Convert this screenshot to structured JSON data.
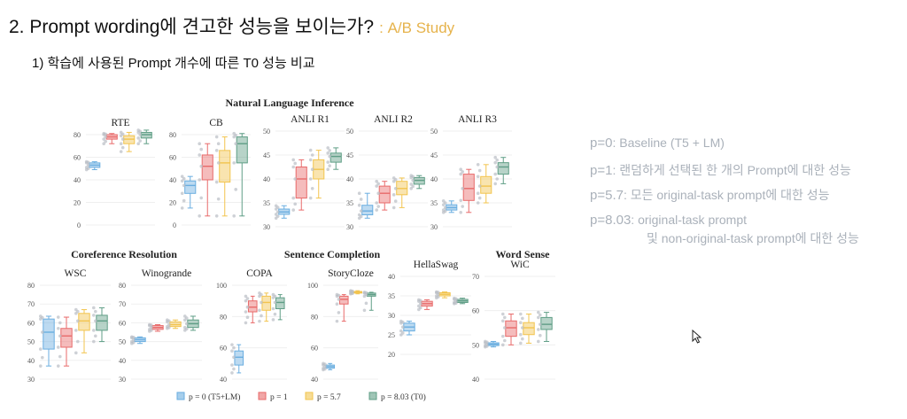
{
  "header": {
    "title": "2. Prompt wording에 견고한 성능을 보이는가?",
    "title_tag": ": A/B Study",
    "subtitle": "1) 학습에 사용된 Prompt 개수에 따른 T0 성능 비교"
  },
  "side_notes": [
    {
      "key": "p=0",
      "text": ": Baseline (T5 + LM)"
    },
    {
      "key": "p=1",
      "text": ": 랜덤하게 선택된 한 개의 Prompt에 대한 성능"
    },
    {
      "key": "p=5.7",
      "text": ": 모든 original-task prompt에 대한 성능"
    },
    {
      "key": "p=8.03",
      "text": ": original-task prompt",
      "text2": "및 non-original-task prompt에 대한 성능"
    }
  ],
  "colors": {
    "p0": "#6aaee0",
    "p1": "#e86a6a",
    "p57": "#f2c44e",
    "p803": "#5f9e86"
  },
  "chart_data": {
    "type": "box",
    "legend": [
      "p = 0 (T5+LM)",
      "p = 1",
      "p = 5.7",
      "p = 8.03 (T0)"
    ],
    "groups": [
      {
        "title": "Natural Language Inference",
        "panels": [
          "RTE",
          "CB",
          "ANLI R1",
          "ANLI R2",
          "ANLI R3"
        ]
      },
      {
        "title": "Coreference Resolution",
        "panels": [
          "WSC",
          "Winogrande"
        ]
      },
      {
        "title": "Sentence Completion",
        "panels": [
          "COPA",
          "StoryCloze",
          "HellaSwag"
        ]
      },
      {
        "title": "Word Sense",
        "panels": [
          "WiC"
        ]
      }
    ],
    "panels": [
      {
        "name": "RTE",
        "ylim": [
          0,
          80
        ],
        "ticks": [
          0,
          20,
          40,
          60,
          80
        ],
        "boxes": [
          {
            "q1": 51,
            "med": 53,
            "q3": 55,
            "lo": 49,
            "hi": 56
          },
          {
            "q1": 76,
            "med": 78,
            "q3": 80,
            "lo": 72,
            "hi": 81
          },
          {
            "q1": 72,
            "med": 76,
            "q3": 79,
            "lo": 65,
            "hi": 82
          },
          {
            "q1": 77,
            "med": 80,
            "q3": 82,
            "lo": 72,
            "hi": 84
          }
        ]
      },
      {
        "name": "CB",
        "ylim": [
          0,
          80
        ],
        "ticks": [
          0,
          20,
          40,
          60,
          80
        ],
        "boxes": [
          {
            "q1": 28,
            "med": 35,
            "q3": 39,
            "lo": 15,
            "hi": 43
          },
          {
            "q1": 40,
            "med": 52,
            "q3": 62,
            "lo": 8,
            "hi": 72
          },
          {
            "q1": 38,
            "med": 55,
            "q3": 66,
            "lo": 8,
            "hi": 78
          },
          {
            "q1": 55,
            "med": 72,
            "q3": 78,
            "lo": 8,
            "hi": 81
          }
        ]
      },
      {
        "name": "ANLI R1",
        "ylim": [
          30,
          50
        ],
        "ticks": [
          30,
          35,
          40,
          45,
          50
        ],
        "boxes": [
          {
            "q1": 32.6,
            "med": 33.1,
            "q3": 33.7,
            "lo": 31.8,
            "hi": 34.4
          },
          {
            "q1": 36,
            "med": 40,
            "q3": 42.5,
            "lo": 33.5,
            "hi": 44
          },
          {
            "q1": 40,
            "med": 42,
            "q3": 44,
            "lo": 36,
            "hi": 46
          },
          {
            "q1": 43.5,
            "med": 44.7,
            "q3": 45.4,
            "lo": 42,
            "hi": 46.5
          }
        ]
      },
      {
        "name": "ANLI R2",
        "ylim": [
          30,
          50
        ],
        "ticks": [
          30,
          35,
          40,
          45,
          50
        ],
        "boxes": [
          {
            "q1": 32.5,
            "med": 33.3,
            "q3": 34.5,
            "lo": 31.8,
            "hi": 37
          },
          {
            "q1": 35,
            "med": 37,
            "q3": 38.5,
            "lo": 33.5,
            "hi": 39.5
          },
          {
            "q1": 36.7,
            "med": 38,
            "q3": 39.5,
            "lo": 34,
            "hi": 40.2
          },
          {
            "q1": 38.9,
            "med": 39.7,
            "q3": 40.3,
            "lo": 38,
            "hi": 40.7
          }
        ]
      },
      {
        "name": "ANLI R3",
        "ylim": [
          30,
          50
        ],
        "ticks": [
          30,
          35,
          40,
          45,
          50
        ],
        "boxes": [
          {
            "q1": 33.5,
            "med": 34,
            "q3": 34.6,
            "lo": 33,
            "hi": 35.4
          },
          {
            "q1": 35.5,
            "med": 38,
            "q3": 41,
            "lo": 33,
            "hi": 42
          },
          {
            "q1": 37,
            "med": 38.5,
            "q3": 40.5,
            "lo": 35,
            "hi": 43
          },
          {
            "q1": 41,
            "med": 42.5,
            "q3": 43.4,
            "lo": 39,
            "hi": 44.5
          }
        ]
      },
      {
        "name": "WSC",
        "ylim": [
          30,
          80
        ],
        "ticks": [
          30,
          40,
          50,
          60,
          70,
          80
        ],
        "boxes": [
          {
            "q1": 46,
            "med": 55,
            "q3": 62,
            "lo": 37,
            "hi": 63.5
          },
          {
            "q1": 47,
            "med": 53,
            "q3": 57,
            "lo": 37,
            "hi": 63
          },
          {
            "q1": 56,
            "med": 61,
            "q3": 65,
            "lo": 44,
            "hi": 67
          },
          {
            "q1": 56,
            "med": 61,
            "q3": 64,
            "lo": 50,
            "hi": 68
          }
        ]
      },
      {
        "name": "Winogrande",
        "ylim": [
          30,
          80
        ],
        "ticks": [
          30,
          40,
          50,
          60,
          70,
          80
        ],
        "boxes": [
          {
            "q1": 50,
            "med": 51,
            "q3": 52,
            "lo": 49,
            "hi": 52.5
          },
          {
            "q1": 56.5,
            "med": 57.5,
            "q3": 58.5,
            "lo": 55.5,
            "hi": 59
          },
          {
            "q1": 58,
            "med": 59,
            "q3": 60.5,
            "lo": 57,
            "hi": 61.5
          },
          {
            "q1": 57.5,
            "med": 59.5,
            "q3": 61.5,
            "lo": 56,
            "hi": 63.5
          }
        ]
      },
      {
        "name": "COPA",
        "ylim": [
          40,
          100
        ],
        "ticks": [
          40,
          60,
          80,
          100
        ],
        "boxes": [
          {
            "q1": 49,
            "med": 54,
            "q3": 58,
            "lo": 44,
            "hi": 62
          },
          {
            "q1": 83,
            "med": 86,
            "q3": 90,
            "lo": 76,
            "hi": 93
          },
          {
            "q1": 84,
            "med": 89,
            "q3": 93,
            "lo": 77,
            "hi": 95
          },
          {
            "q1": 85,
            "med": 89,
            "q3": 92,
            "lo": 78,
            "hi": 94
          }
        ]
      },
      {
        "name": "StoryCloze",
        "ylim": [
          40,
          100
        ],
        "ticks": [
          40,
          60,
          80,
          100
        ],
        "boxes": [
          {
            "q1": 47,
            "med": 48,
            "q3": 49,
            "lo": 46,
            "hi": 50
          },
          {
            "q1": 88,
            "med": 91,
            "q3": 93,
            "lo": 77,
            "hi": 94
          },
          {
            "q1": 95,
            "med": 95.5,
            "q3": 96,
            "lo": 94.5,
            "hi": 96.5
          },
          {
            "q1": 93,
            "med": 94,
            "q3": 95,
            "lo": 84,
            "hi": 95.5
          }
        ]
      },
      {
        "name": "HellaSwag",
        "ylim": [
          20,
          40
        ],
        "ticks": [
          20,
          25,
          30,
          35,
          40
        ],
        "boxes": [
          {
            "q1": 26,
            "med": 27,
            "q3": 28,
            "lo": 25,
            "hi": 28.5
          },
          {
            "q1": 32.4,
            "med": 33,
            "q3": 33.6,
            "lo": 31.5,
            "hi": 34
          },
          {
            "q1": 35,
            "med": 35.4,
            "q3": 35.8,
            "lo": 34.5,
            "hi": 36
          },
          {
            "q1": 33.3,
            "med": 33.7,
            "q3": 34.1,
            "lo": 33,
            "hi": 34.4
          }
        ]
      },
      {
        "name": "WiC",
        "ylim": [
          40,
          70
        ],
        "ticks": [
          40,
          50,
          60,
          70
        ],
        "boxes": [
          {
            "q1": 49.8,
            "med": 50.2,
            "q3": 50.6,
            "lo": 49.4,
            "hi": 51
          },
          {
            "q1": 52.5,
            "med": 55,
            "q3": 57,
            "lo": 50,
            "hi": 59
          },
          {
            "q1": 53,
            "med": 55,
            "q3": 56.5,
            "lo": 50.5,
            "hi": 59
          },
          {
            "q1": 54.5,
            "med": 56,
            "q3": 58,
            "lo": 51,
            "hi": 59.5
          }
        ]
      }
    ]
  }
}
